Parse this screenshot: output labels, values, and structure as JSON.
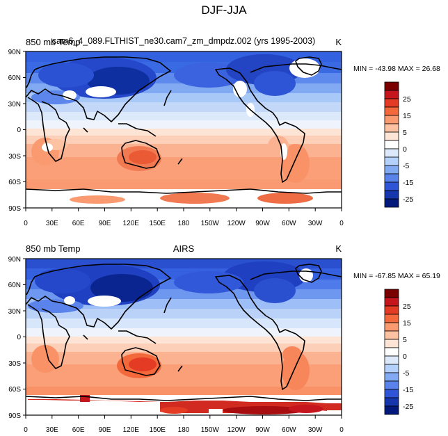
{
  "figure": {
    "title": "DJF-JJA",
    "lat_ticks": [
      "90N",
      "60N",
      "30N",
      "0",
      "30S",
      "60S",
      "90S"
    ],
    "lon_ticks": [
      "0",
      "30E",
      "60E",
      "90E",
      "120E",
      "150E",
      "180",
      "150W",
      "120W",
      "90W",
      "60W",
      "30W",
      "0"
    ],
    "colorbar_labels": [
      "25",
      "15",
      "5",
      "0",
      "-5",
      "-15",
      "-25"
    ],
    "colorbar_colors": [
      "#7a0000",
      "#c4161c",
      "#e33b24",
      "#f4693c",
      "#fa9a70",
      "#fcc2a2",
      "#fde4d4",
      "#ffffff",
      "#dbe9fb",
      "#b3d1fa",
      "#82aaf2",
      "#5983ea",
      "#2e55d6",
      "#1536ad",
      "#031a7c"
    ],
    "land_outline_color": "#000000",
    "missing_color": "#ffffff"
  },
  "panels": [
    {
      "left_title": "850 mb Temp",
      "center_title": "cam6_4_089.FLTHIST_ne30.cam7_zm_dmpdz.002 (yrs 1995-2003)",
      "right_title": "K",
      "stats": "MIN = -43.98 MAX =  26.68"
    },
    {
      "left_title": "850 mb Temp",
      "center_title": "AIRS",
      "right_title": "K",
      "stats": "MIN = -67.85 MAX =  65.19"
    }
  ]
}
